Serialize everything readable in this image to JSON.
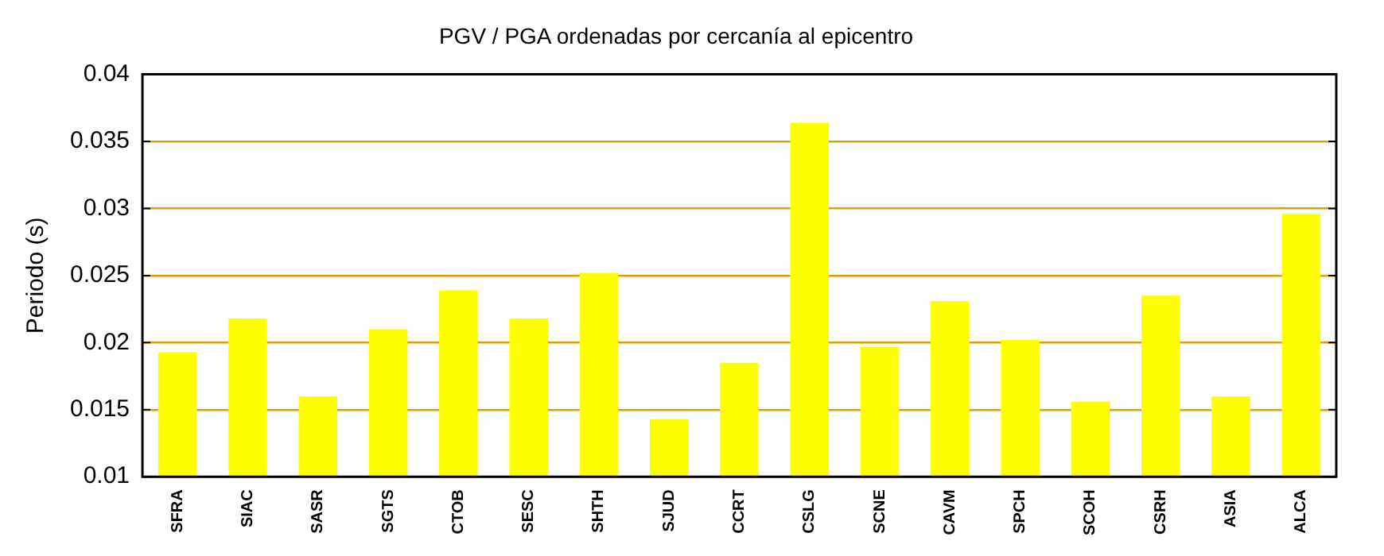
{
  "chart_data": {
    "type": "bar",
    "title": "PGV / PGA ordenadas por cercanía al epicentro",
    "ylabel": "Periodo (s)",
    "categories": [
      "SFRA",
      "SIAC",
      "SASR",
      "SGTS",
      "CTOB",
      "SESC",
      "SHTH",
      "SJUD",
      "CCRT",
      "CSLG",
      "SCNE",
      "CAVM",
      "SPCH",
      "SCOH",
      "CSRH",
      "ASIA",
      "ALCA"
    ],
    "values": [
      0.0193,
      0.0218,
      0.016,
      0.021,
      0.0239,
      0.0218,
      0.0252,
      0.0143,
      0.0185,
      0.0364,
      0.0197,
      0.0231,
      0.0202,
      0.0156,
      0.0235,
      0.016,
      0.0296
    ],
    "color": "#ffff00",
    "ylim": [
      0.01,
      0.04
    ],
    "yticks": [
      0.01,
      0.015,
      0.02,
      0.025,
      0.03,
      0.035,
      0.04
    ],
    "grid": "y",
    "legend": false
  }
}
